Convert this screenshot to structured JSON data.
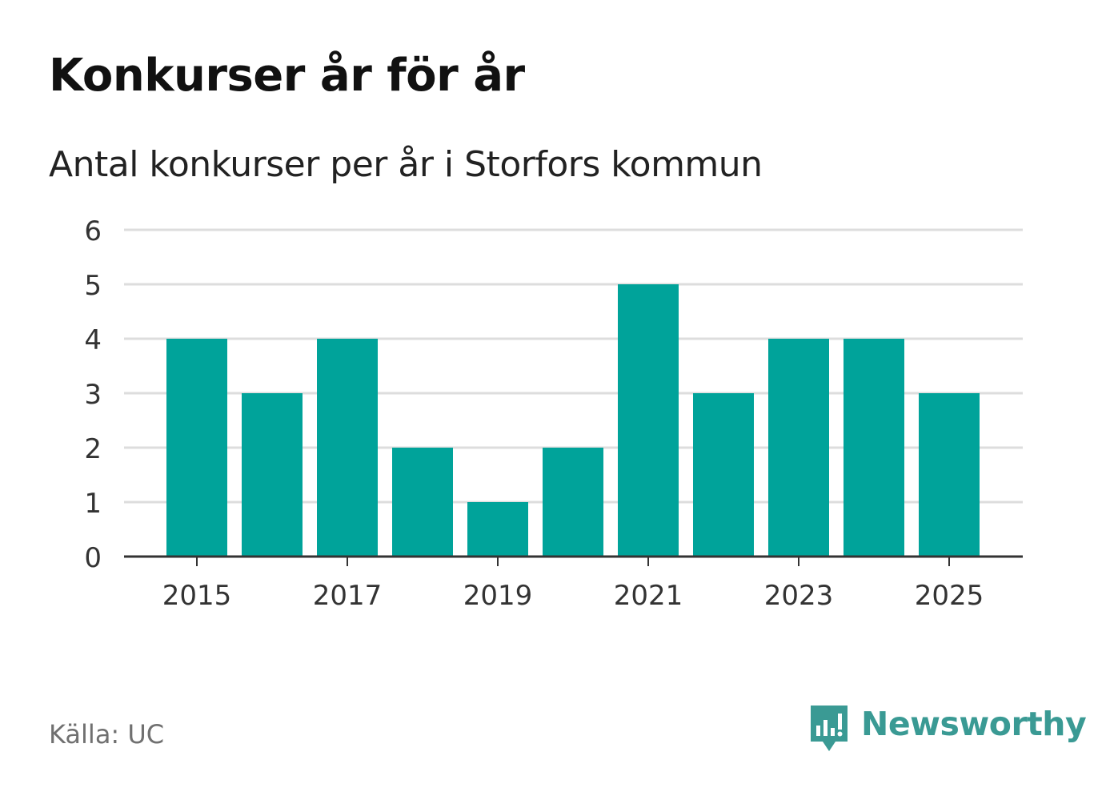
{
  "header": {
    "title": "Konkurser år för år",
    "subtitle": "Antal konkurser per år i Storfors kommun"
  },
  "footer": {
    "source": "Källa: UC",
    "brand": "Newsworthy"
  },
  "colors": {
    "bar": "#00a39a",
    "grid": "#dddddd",
    "axis": "#333333",
    "brand": "#3a9a94"
  },
  "icons": {
    "brand": "newsworthy-logo-icon"
  },
  "chart_data": {
    "type": "bar",
    "title": "Konkurser år för år",
    "subtitle": "Antal konkurser per år i Storfors kommun",
    "xlabel": "",
    "ylabel": "",
    "categories": [
      2015,
      2016,
      2017,
      2018,
      2019,
      2020,
      2021,
      2022,
      2023,
      2024,
      2025
    ],
    "values": [
      4,
      3,
      4,
      2,
      1,
      2,
      5,
      3,
      4,
      4,
      3
    ],
    "ylim": [
      0,
      6
    ],
    "yticks": [
      0,
      1,
      2,
      3,
      4,
      5,
      6
    ],
    "xticks": [
      2015,
      2017,
      2019,
      2021,
      2023,
      2025
    ],
    "grid": true,
    "legend": "none"
  }
}
